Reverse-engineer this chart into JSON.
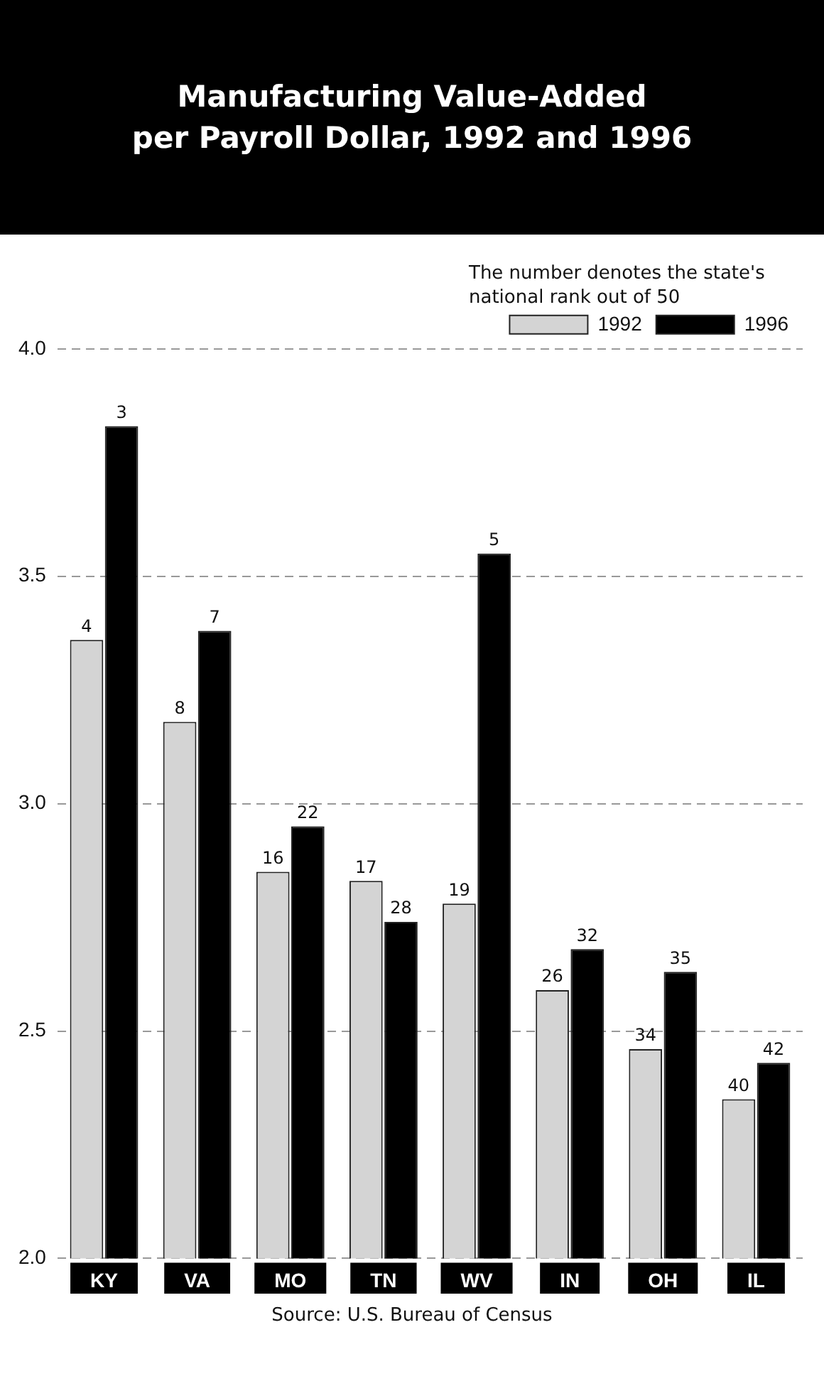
{
  "chart_data": {
    "type": "bar",
    "title": "Manufacturing Value-Added\nper Payroll Dollar, 1992 and 1996",
    "categories": [
      "KY",
      "VA",
      "MO",
      "TN",
      "WV",
      "IN",
      "OH",
      "IL"
    ],
    "series": [
      {
        "name": "1992",
        "color": "#d4d4d4",
        "values": [
          3.36,
          3.18,
          2.85,
          2.83,
          2.78,
          2.59,
          2.46,
          2.35
        ]
      },
      {
        "name": "1996",
        "color": "#000000",
        "values": [
          3.83,
          3.38,
          2.95,
          2.74,
          3.55,
          2.68,
          2.63,
          2.43
        ]
      }
    ],
    "ylim": [
      2.0,
      4.0
    ],
    "yticks": [
      {
        "value": 2.0,
        "label": "2.0"
      },
      {
        "value": 2.5,
        "label": "2.5"
      },
      {
        "value": 3.0,
        "label": "3.0"
      },
      {
        "value": 3.5,
        "label": "3.5"
      },
      {
        "value": 4.0,
        "label": "4.0"
      }
    ],
    "grid": "y",
    "legend": "top right",
    "annotations": [
      "The number denotes the state's national rank out of 50",
      "Source: U.S. Bureau of Census",
      {
        "text": "4",
        "x": "KY",
        "y": 3.36
      },
      {
        "text": "3",
        "x": "KY",
        "y": 3.83
      },
      {
        "text": "8",
        "x": "VA",
        "y": 3.18
      },
      {
        "text": "7",
        "x": "VA",
        "y": 3.38
      },
      {
        "text": "16",
        "x": "MO",
        "y": 2.85
      },
      {
        "text": "22",
        "x": "MO",
        "y": 2.95
      },
      {
        "text": "17",
        "x": "TN",
        "y": 2.83
      },
      {
        "text": "28",
        "x": "TN",
        "y": 2.74
      },
      {
        "text": "19",
        "x": "WV",
        "y": 2.78
      },
      {
        "text": "5",
        "x": "WV",
        "y": 3.55
      },
      {
        "text": "26",
        "x": "IN",
        "y": 2.59
      },
      {
        "text": "32",
        "x": "IN",
        "y": 2.68
      },
      {
        "text": "34",
        "x": "OH",
        "y": 2.46
      },
      {
        "text": "35",
        "x": "OH",
        "y": 2.63
      },
      {
        "text": "40",
        "x": "IL",
        "y": 2.35
      },
      {
        "text": "42",
        "x": "IL",
        "y": 2.43
      }
    ]
  }
}
